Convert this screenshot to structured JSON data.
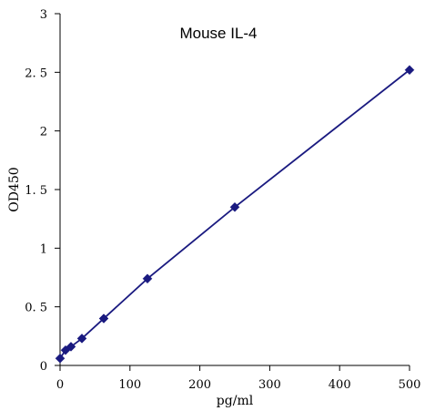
{
  "chart_data": {
    "type": "line",
    "title": "Mouse IL-4",
    "xlabel": "pg/ml",
    "ylabel": "OD450",
    "xlim": [
      0,
      500
    ],
    "ylim": [
      0,
      3
    ],
    "x_ticks": [
      0,
      100,
      200,
      300,
      400,
      500
    ],
    "x_tick_labels": [
      "0",
      "100",
      "200",
      "300",
      "400",
      "500"
    ],
    "y_ticks": [
      0,
      0.5,
      1,
      1.5,
      2,
      2.5,
      3
    ],
    "y_tick_labels": [
      "0",
      "0. 5",
      "1",
      "1. 5",
      "2",
      "2. 5",
      "3"
    ],
    "grid": false,
    "legend": "none",
    "series": [
      {
        "color": "#1a1a80",
        "marker": "diamond",
        "x": [
          0,
          7.8,
          15.6,
          31.25,
          62.5,
          125,
          250,
          500
        ],
        "y": [
          0.06,
          0.13,
          0.16,
          0.23,
          0.4,
          0.74,
          1.35,
          2.52
        ]
      }
    ]
  }
}
